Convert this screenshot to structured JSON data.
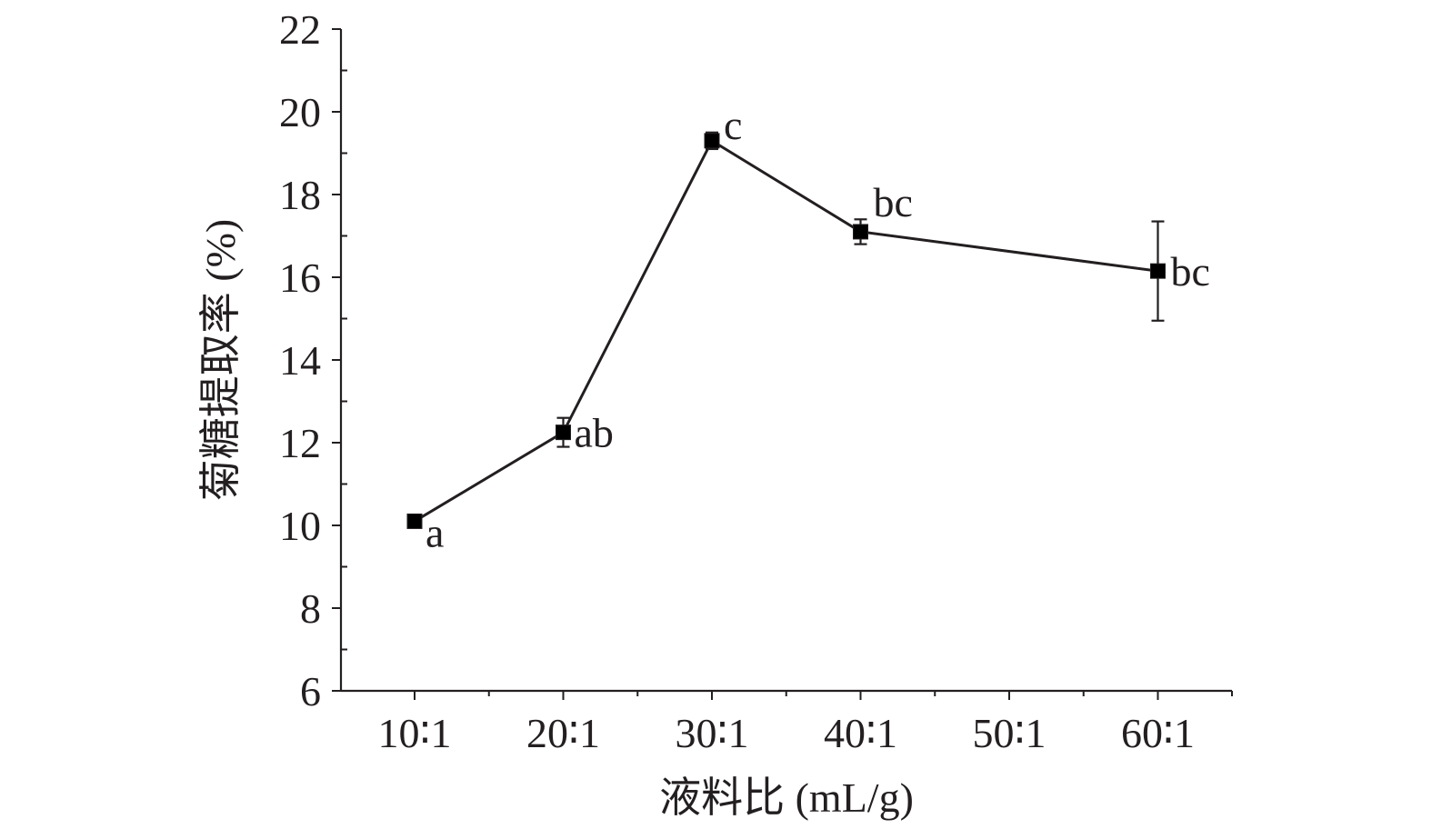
{
  "chart_data": {
    "type": "line",
    "xlabel": "液料比 (mL/g)",
    "ylabel": "菊糖提取率 (%)",
    "categories": [
      "10∶1",
      "20∶1",
      "30∶1",
      "40∶1",
      "50∶1",
      "60∶1"
    ],
    "ylim": [
      6,
      22
    ],
    "yticks": [
      6,
      8,
      10,
      12,
      14,
      16,
      18,
      20,
      22
    ],
    "y_minor_step": 1,
    "grid": false,
    "colors": {
      "axis": "#231f20",
      "line": "#231f20",
      "marker": "#000000"
    },
    "series": [
      {
        "points": [
          {
            "category": "10∶1",
            "value": 10.1,
            "error": 0.1,
            "label": "a"
          },
          {
            "category": "20∶1",
            "value": 12.25,
            "error": 0.35,
            "label": "ab"
          },
          {
            "category": "30∶1",
            "value": 19.3,
            "error": 0.2,
            "label": "c"
          },
          {
            "category": "40∶1",
            "value": 17.1,
            "error": 0.3,
            "label": "bc"
          },
          {
            "category": "60∶1",
            "value": 16.15,
            "error": 1.2,
            "label": "bc"
          }
        ]
      }
    ]
  }
}
